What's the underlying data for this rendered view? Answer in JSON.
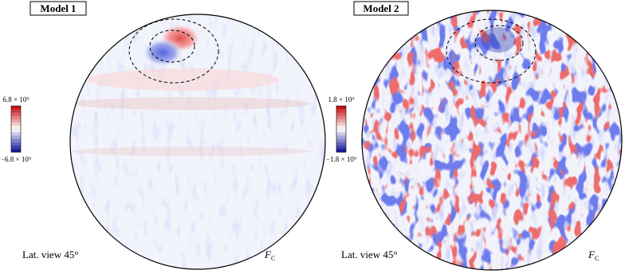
{
  "panels": [
    {
      "title": "Model 1",
      "colorbar_max_label": "6.8 × 10⁹",
      "colorbar_min_label": "−6.8 × 10⁹",
      "view_label": "Lat. view 45°",
      "field_symbol": "F",
      "field_subscript": "C"
    },
    {
      "title": "Model 2",
      "colorbar_max_label": "1.8 × 10⁹",
      "colorbar_min_label": "−1.8 × 10⁹",
      "view_label": "Lat. view 45°",
      "field_symbol": "F",
      "field_subscript": "C"
    }
  ]
}
